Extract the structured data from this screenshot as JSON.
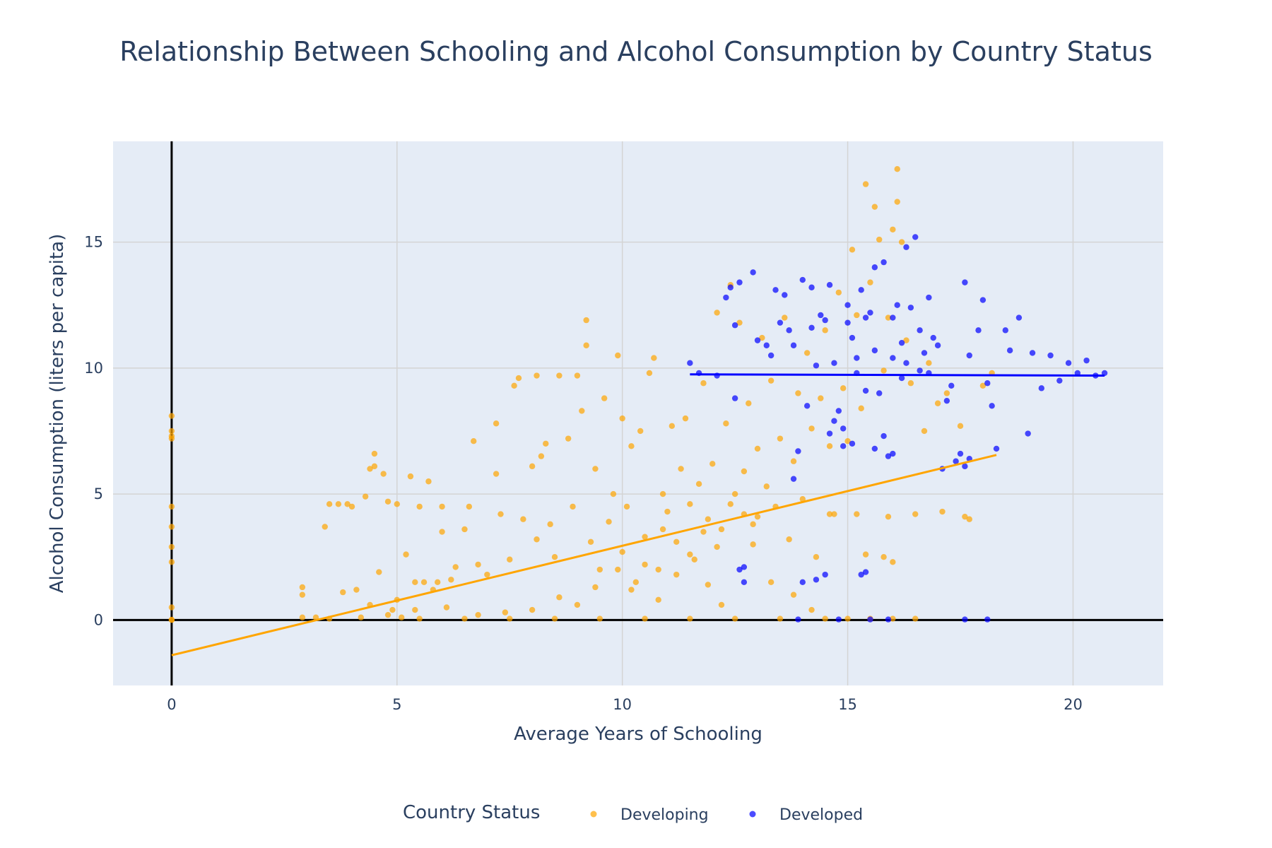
{
  "chart_data": {
    "type": "scatter",
    "title": "Relationship Between Schooling and Alcohol Consumption by Country Status",
    "xlabel": "Average Years of Schooling",
    "ylabel": "Alcohol Consumption (liters per capita)",
    "xlim": [
      -1.3,
      22
    ],
    "ylim": [
      -2.6,
      19
    ],
    "x_ticks": [
      0,
      5,
      10,
      15,
      20
    ],
    "y_ticks": [
      0,
      5,
      10,
      15
    ],
    "grid": true,
    "zero_lines": true,
    "legend": {
      "title": "Country Status",
      "placement": "bottom-center",
      "orientation": "horizontal"
    },
    "series": [
      {
        "name": "Developing",
        "color": "#FFA500",
        "opacity": 0.7,
        "points": [
          [
            0,
            0
          ],
          [
            0,
            0.01
          ],
          [
            0,
            0.5
          ],
          [
            0,
            2.3
          ],
          [
            0,
            2.9
          ],
          [
            0,
            3.7
          ],
          [
            0,
            4.5
          ],
          [
            0,
            7.2
          ],
          [
            0,
            7.3
          ],
          [
            0,
            7.5
          ],
          [
            0,
            8.1
          ],
          [
            2.9,
            0.1
          ],
          [
            2.9,
            1.0
          ],
          [
            2.9,
            1.3
          ],
          [
            3.2,
            0.1
          ],
          [
            3.4,
            3.7
          ],
          [
            3.5,
            4.6
          ],
          [
            3.7,
            4.6
          ],
          [
            3.8,
            1.1
          ],
          [
            3.9,
            4.6
          ],
          [
            4.0,
            4.5
          ],
          [
            4.1,
            1.2
          ],
          [
            4.3,
            4.9
          ],
          [
            4.4,
            0.6
          ],
          [
            4.4,
            6.0
          ],
          [
            4.5,
            6.1
          ],
          [
            4.5,
            6.6
          ],
          [
            4.6,
            1.9
          ],
          [
            4.7,
            5.8
          ],
          [
            4.8,
            4.7
          ],
          [
            4.9,
            0.4
          ],
          [
            5.0,
            0.8
          ],
          [
            5.0,
            4.6
          ],
          [
            5.1,
            0.1
          ],
          [
            5.2,
            2.6
          ],
          [
            5.3,
            5.7
          ],
          [
            5.4,
            1.5
          ],
          [
            5.5,
            4.5
          ],
          [
            5.6,
            1.5
          ],
          [
            5.7,
            5.5
          ],
          [
            5.8,
            1.2
          ],
          [
            5.9,
            1.5
          ],
          [
            6.0,
            3.5
          ],
          [
            6.0,
            4.5
          ],
          [
            6.2,
            1.6
          ],
          [
            6.3,
            2.1
          ],
          [
            6.5,
            3.6
          ],
          [
            6.6,
            4.5
          ],
          [
            6.7,
            7.1
          ],
          [
            6.8,
            2.2
          ],
          [
            7.0,
            1.8
          ],
          [
            7.2,
            5.8
          ],
          [
            7.2,
            7.8
          ],
          [
            7.3,
            4.2
          ],
          [
            7.5,
            2.4
          ],
          [
            7.6,
            9.3
          ],
          [
            7.7,
            9.6
          ],
          [
            7.8,
            4.0
          ],
          [
            8.0,
            6.1
          ],
          [
            8.1,
            3.2
          ],
          [
            8.1,
            9.7
          ],
          [
            8.2,
            6.5
          ],
          [
            8.3,
            7.0
          ],
          [
            8.4,
            3.8
          ],
          [
            8.5,
            2.5
          ],
          [
            8.6,
            9.7
          ],
          [
            8.8,
            7.2
          ],
          [
            8.9,
            4.5
          ],
          [
            9.0,
            9.7
          ],
          [
            9.1,
            8.3
          ],
          [
            9.2,
            11.9
          ],
          [
            9.2,
            10.9
          ],
          [
            9.3,
            3.1
          ],
          [
            9.4,
            6.0
          ],
          [
            9.5,
            2.0
          ],
          [
            9.6,
            8.8
          ],
          [
            9.7,
            3.9
          ],
          [
            9.8,
            5.0
          ],
          [
            9.9,
            10.5
          ],
          [
            10.0,
            2.7
          ],
          [
            10.0,
            8.0
          ],
          [
            10.1,
            4.5
          ],
          [
            10.2,
            6.9
          ],
          [
            10.3,
            1.5
          ],
          [
            10.4,
            7.5
          ],
          [
            10.5,
            3.3
          ],
          [
            10.6,
            9.8
          ],
          [
            10.7,
            10.4
          ],
          [
            10.8,
            2.0
          ],
          [
            10.9,
            5.0
          ],
          [
            11.0,
            4.3
          ],
          [
            11.1,
            7.7
          ],
          [
            11.2,
            3.1
          ],
          [
            11.3,
            6.0
          ],
          [
            11.4,
            8.0
          ],
          [
            11.5,
            4.6
          ],
          [
            11.6,
            2.4
          ],
          [
            11.7,
            5.4
          ],
          [
            11.8,
            9.4
          ],
          [
            11.9,
            4.0
          ],
          [
            12.0,
            6.2
          ],
          [
            12.1,
            12.2
          ],
          [
            12.2,
            3.6
          ],
          [
            12.3,
            7.8
          ],
          [
            12.4,
            13.3
          ],
          [
            12.5,
            5.0
          ],
          [
            12.6,
            11.8
          ],
          [
            12.7,
            4.2
          ],
          [
            12.8,
            8.6
          ],
          [
            12.9,
            3.8
          ],
          [
            13.0,
            6.8
          ],
          [
            13.1,
            11.2
          ],
          [
            13.2,
            5.3
          ],
          [
            13.3,
            9.5
          ],
          [
            13.4,
            4.5
          ],
          [
            13.5,
            7.2
          ],
          [
            13.6,
            12.0
          ],
          [
            13.7,
            3.2
          ],
          [
            13.8,
            6.3
          ],
          [
            13.9,
            9.0
          ],
          [
            14.0,
            4.8
          ],
          [
            14.1,
            10.6
          ],
          [
            14.2,
            7.6
          ],
          [
            14.3,
            2.5
          ],
          [
            14.4,
            8.8
          ],
          [
            14.5,
            11.5
          ],
          [
            14.6,
            6.9
          ],
          [
            14.7,
            4.2
          ],
          [
            14.8,
            13.0
          ],
          [
            14.9,
            9.2
          ],
          [
            15.0,
            7.1
          ],
          [
            15.1,
            14.7
          ],
          [
            15.2,
            12.1
          ],
          [
            15.3,
            8.4
          ],
          [
            15.4,
            17.3
          ],
          [
            15.5,
            13.4
          ],
          [
            15.6,
            16.4
          ],
          [
            15.7,
            15.1
          ],
          [
            15.8,
            9.9
          ],
          [
            15.9,
            12.0
          ],
          [
            16.0,
            15.5
          ],
          [
            16.1,
            17.9
          ],
          [
            16.1,
            16.6
          ],
          [
            16.2,
            15.0
          ],
          [
            16.3,
            11.1
          ],
          [
            16.4,
            9.4
          ],
          [
            16.5,
            4.2
          ],
          [
            16.7,
            7.5
          ],
          [
            16.8,
            10.2
          ],
          [
            17.0,
            8.6
          ],
          [
            17.1,
            4.3
          ],
          [
            17.2,
            9.0
          ],
          [
            17.5,
            7.7
          ],
          [
            17.6,
            4.1
          ],
          [
            17.7,
            4.0
          ],
          [
            18.0,
            9.3
          ],
          [
            18.2,
            9.8
          ],
          [
            3.5,
            0.05
          ],
          [
            4.2,
            0.1
          ],
          [
            5.5,
            0.05
          ],
          [
            6.5,
            0.05
          ],
          [
            7.5,
            0.05
          ],
          [
            8.5,
            0.05
          ],
          [
            9.5,
            0.05
          ],
          [
            10.5,
            0.05
          ],
          [
            11.5,
            0.05
          ],
          [
            12.5,
            0.05
          ],
          [
            13.5,
            0.05
          ],
          [
            14.5,
            0.05
          ],
          [
            15.0,
            0.05
          ],
          [
            15.5,
            0.05
          ],
          [
            16.0,
            0.05
          ],
          [
            16.5,
            0.05
          ],
          [
            10.2,
            1.2
          ],
          [
            10.5,
            2.2
          ],
          [
            10.8,
            0.8
          ],
          [
            11.2,
            1.8
          ],
          [
            11.5,
            2.6
          ],
          [
            11.8,
            3.5
          ],
          [
            12.1,
            2.9
          ],
          [
            12.4,
            4.6
          ],
          [
            12.7,
            5.9
          ],
          [
            13.0,
            4.1
          ],
          [
            13.3,
            1.5
          ],
          [
            9.0,
            0.6
          ],
          [
            9.4,
            1.3
          ],
          [
            8.6,
            0.9
          ],
          [
            8.0,
            0.4
          ],
          [
            7.4,
            0.3
          ],
          [
            6.8,
            0.2
          ],
          [
            6.1,
            0.5
          ],
          [
            5.4,
            0.4
          ],
          [
            4.8,
            0.2
          ],
          [
            12.2,
            0.6
          ],
          [
            13.8,
            1.0
          ],
          [
            14.2,
            0.4
          ],
          [
            15.4,
            2.6
          ],
          [
            15.8,
            2.5
          ],
          [
            16.0,
            2.3
          ],
          [
            15.2,
            4.2
          ],
          [
            15.9,
            4.1
          ],
          [
            14.6,
            4.2
          ],
          [
            12.9,
            3.0
          ],
          [
            11.9,
            1.4
          ],
          [
            10.9,
            3.6
          ],
          [
            9.9,
            2.0
          ]
        ]
      },
      {
        "name": "Developed",
        "color": "#0000FF",
        "opacity": 0.7,
        "points": [
          [
            11.5,
            10.2
          ],
          [
            11.7,
            9.8
          ],
          [
            12.1,
            9.7
          ],
          [
            12.3,
            12.8
          ],
          [
            12.4,
            13.2
          ],
          [
            12.6,
            13.4
          ],
          [
            12.5,
            11.7
          ],
          [
            12.5,
            8.8
          ],
          [
            12.6,
            2.0
          ],
          [
            12.7,
            1.5
          ],
          [
            12.7,
            2.1
          ],
          [
            12.9,
            13.8
          ],
          [
            13.0,
            11.1
          ],
          [
            13.2,
            10.9
          ],
          [
            13.4,
            13.1
          ],
          [
            13.5,
            11.8
          ],
          [
            13.6,
            12.9
          ],
          [
            13.7,
            11.5
          ],
          [
            13.8,
            5.6
          ],
          [
            13.9,
            6.7
          ],
          [
            14.0,
            13.5
          ],
          [
            14.1,
            8.5
          ],
          [
            14.2,
            13.2
          ],
          [
            14.3,
            10.1
          ],
          [
            14.4,
            12.1
          ],
          [
            14.5,
            11.9
          ],
          [
            14.6,
            13.3
          ],
          [
            14.7,
            7.9
          ],
          [
            14.8,
            8.3
          ],
          [
            14.9,
            6.9
          ],
          [
            15.0,
            12.5
          ],
          [
            15.1,
            11.2
          ],
          [
            15.2,
            10.4
          ],
          [
            15.3,
            13.1
          ],
          [
            15.4,
            9.1
          ],
          [
            15.5,
            12.2
          ],
          [
            15.6,
            14.0
          ],
          [
            15.7,
            9.0
          ],
          [
            15.8,
            14.2
          ],
          [
            15.9,
            6.5
          ],
          [
            16.0,
            12.0
          ],
          [
            16.1,
            12.5
          ],
          [
            16.2,
            11.0
          ],
          [
            16.3,
            14.8
          ],
          [
            16.4,
            12.4
          ],
          [
            16.5,
            15.2
          ],
          [
            16.6,
            11.5
          ],
          [
            16.7,
            10.6
          ],
          [
            16.8,
            12.8
          ],
          [
            16.9,
            11.2
          ],
          [
            17.0,
            10.9
          ],
          [
            17.1,
            6.0
          ],
          [
            17.2,
            8.7
          ],
          [
            17.3,
            9.3
          ],
          [
            17.5,
            6.6
          ],
          [
            17.6,
            13.4
          ],
          [
            17.7,
            10.5
          ],
          [
            17.9,
            11.5
          ],
          [
            18.0,
            12.7
          ],
          [
            18.1,
            9.4
          ],
          [
            18.2,
            8.5
          ],
          [
            18.3,
            6.8
          ],
          [
            18.5,
            11.5
          ],
          [
            18.6,
            10.7
          ],
          [
            18.8,
            12.0
          ],
          [
            19.0,
            7.4
          ],
          [
            19.1,
            10.6
          ],
          [
            19.3,
            9.2
          ],
          [
            19.5,
            10.5
          ],
          [
            19.7,
            9.5
          ],
          [
            19.9,
            10.2
          ],
          [
            20.1,
            9.8
          ],
          [
            20.3,
            10.3
          ],
          [
            20.5,
            9.7
          ],
          [
            20.7,
            9.8
          ],
          [
            14.0,
            1.5
          ],
          [
            14.3,
            1.6
          ],
          [
            14.5,
            1.8
          ],
          [
            15.3,
            1.8
          ],
          [
            15.4,
            1.9
          ],
          [
            13.9,
            0.02
          ],
          [
            14.8,
            0.02
          ],
          [
            15.5,
            0.02
          ],
          [
            15.9,
            0.02
          ],
          [
            17.6,
            0.02
          ],
          [
            18.1,
            0.02
          ],
          [
            14.6,
            7.4
          ],
          [
            14.9,
            7.6
          ],
          [
            15.1,
            7.0
          ],
          [
            15.6,
            6.8
          ],
          [
            15.8,
            7.3
          ],
          [
            16.0,
            6.6
          ],
          [
            17.4,
            6.3
          ],
          [
            17.6,
            6.1
          ],
          [
            17.7,
            6.4
          ],
          [
            15.2,
            9.8
          ],
          [
            15.6,
            10.7
          ],
          [
            16.2,
            9.6
          ],
          [
            16.6,
            9.9
          ],
          [
            13.3,
            10.5
          ],
          [
            13.8,
            10.9
          ],
          [
            14.2,
            11.6
          ],
          [
            14.7,
            10.2
          ],
          [
            15.0,
            11.8
          ],
          [
            15.4,
            12.0
          ],
          [
            16.0,
            10.4
          ],
          [
            16.3,
            10.2
          ],
          [
            16.8,
            9.8
          ]
        ]
      }
    ],
    "trend_lines": [
      {
        "series": "Developing",
        "x": [
          0,
          18.3
        ],
        "y": [
          -1.4,
          6.55
        ],
        "color": "#FFA500"
      },
      {
        "series": "Developed",
        "x": [
          11.5,
          20.7
        ],
        "y": [
          9.75,
          9.7
        ],
        "color": "#0000FF"
      }
    ]
  }
}
